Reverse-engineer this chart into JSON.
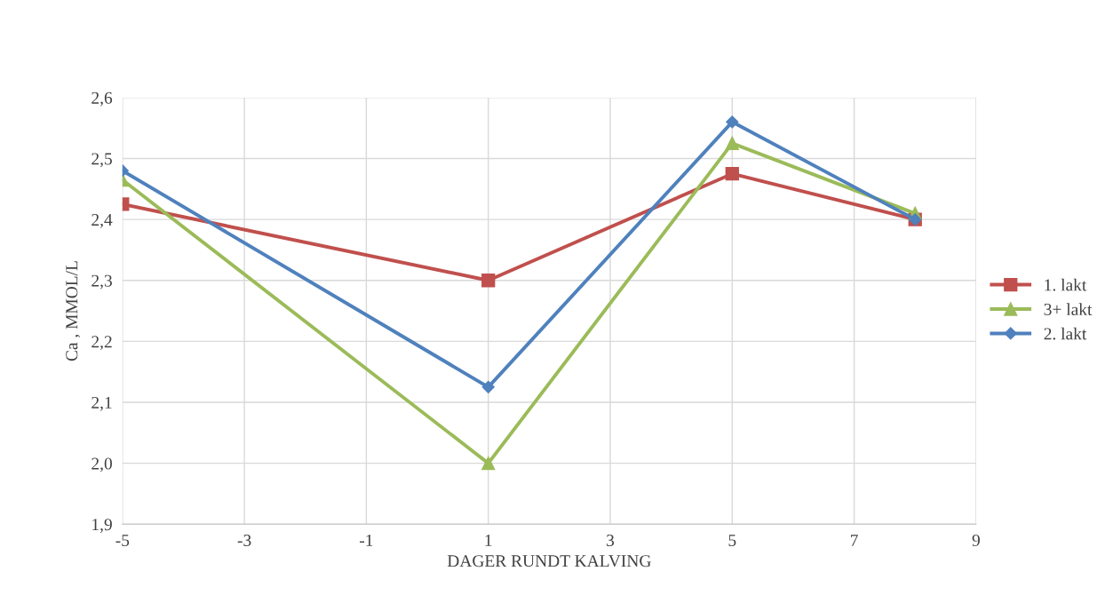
{
  "chart_data": {
    "type": "line",
    "xlabel": "DAGER RUNDT KALVING",
    "ylabel": "Ca , MMOL/L",
    "x": [
      -5,
      1,
      5,
      8
    ],
    "series": [
      {
        "name": "1. lakt",
        "color": "#c0504d",
        "marker": "square",
        "values": [
          2.425,
          2.3,
          2.475,
          2.4
        ]
      },
      {
        "name": "3+ lakt",
        "color": "#9bbb59",
        "marker": "triangle",
        "values": [
          2.465,
          2.0,
          2.525,
          2.41
        ]
      },
      {
        "name": "2. lakt",
        "color": "#4f81bd",
        "marker": "diamond",
        "values": [
          2.48,
          2.125,
          2.56,
          2.4
        ]
      }
    ],
    "xlim": [
      -5,
      9
    ],
    "xticks": [
      -5,
      -3,
      -1,
      1,
      3,
      5,
      7,
      9
    ],
    "ylim": [
      1.9,
      2.6
    ],
    "yticks": [
      {
        "value": 1.9,
        "label": "1,9"
      },
      {
        "value": 2.0,
        "label": "2,0"
      },
      {
        "value": 2.1,
        "label": "2,1"
      },
      {
        "value": 2.2,
        "label": "2,2"
      },
      {
        "value": 2.3,
        "label": "2,3"
      },
      {
        "value": 2.4,
        "label": "2,4"
      },
      {
        "value": 2.5,
        "label": "2,5"
      },
      {
        "value": 2.6,
        "label": "2,6"
      }
    ],
    "grid": true,
    "legend": "right",
    "line_style": "solid"
  }
}
